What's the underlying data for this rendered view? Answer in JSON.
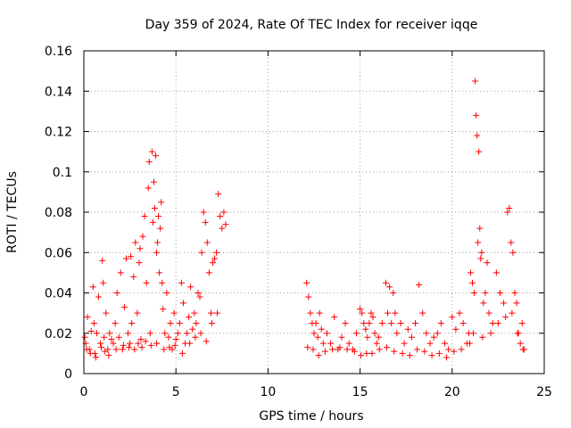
{
  "chart_data": {
    "type": "scatter",
    "title": "Day 359 of 2024, Rate Of TEC Index for receiver iqqe",
    "xlabel": "GPS time / hours",
    "ylabel": "ROTI / TECUs",
    "xlim": [
      0,
      25
    ],
    "ylim": [
      0,
      0.16
    ],
    "x_ticks": [
      0,
      5,
      10,
      15,
      20,
      25
    ],
    "y_ticks": [
      0,
      0.02,
      0.04,
      0.06,
      0.08,
      0.1,
      0.12,
      0.14,
      0.16
    ],
    "x_tick_labels": [
      "0",
      "5",
      "10",
      "15",
      "20",
      "25"
    ],
    "y_tick_labels": [
      "0",
      "0.02",
      "0.04",
      "0.06",
      "0.08",
      "0.1",
      "0.12",
      "0.14",
      "0.16"
    ],
    "grid": true,
    "marker": "+",
    "marker_color": "#ff0000",
    "series": [
      {
        "name": "ROTI",
        "x": [
          0.05,
          0.1,
          0.2,
          0.3,
          0.4,
          0.5,
          0.55,
          0.6,
          0.7,
          0.8,
          0.9,
          1.0,
          1.05,
          1.1,
          1.2,
          1.3,
          1.4,
          1.5,
          1.6,
          1.7,
          1.8,
          1.9,
          2.0,
          2.1,
          2.2,
          2.3,
          2.4,
          2.5,
          2.55,
          2.6,
          2.7,
          2.8,
          2.9,
          3.0,
          3.05,
          3.1,
          3.2,
          3.3,
          3.4,
          3.5,
          3.55,
          3.6,
          3.7,
          3.75,
          3.8,
          3.85,
          3.9,
          3.95,
          4.0,
          4.05,
          4.1,
          4.15,
          4.2,
          4.25,
          4.3,
          4.4,
          4.5,
          4.6,
          4.7,
          4.8,
          4.9,
          5.0,
          5.1,
          5.2,
          5.3,
          5.4,
          5.5,
          5.6,
          5.7,
          5.8,
          5.9,
          6.0,
          6.1,
          6.2,
          6.3,
          6.4,
          6.5,
          6.6,
          6.7,
          6.8,
          6.9,
          7.0,
          7.1,
          7.2,
          7.3,
          7.4,
          7.5,
          7.6,
          7.7,
          0.15,
          0.35,
          0.65,
          0.95,
          1.15,
          1.35,
          1.75,
          2.15,
          2.45,
          2.75,
          2.95,
          3.15,
          3.35,
          3.65,
          3.95,
          4.35,
          4.65,
          4.95,
          5.35,
          5.75,
          6.05,
          6.35,
          6.65,
          6.95,
          7.25,
          12.1,
          12.2,
          12.3,
          12.4,
          12.5,
          12.6,
          12.7,
          12.8,
          12.9,
          13.0,
          13.2,
          13.4,
          13.6,
          13.8,
          14.0,
          14.2,
          14.4,
          14.6,
          14.8,
          15.0,
          15.1,
          15.2,
          15.3,
          15.4,
          15.5,
          15.6,
          15.7,
          15.8,
          15.9,
          16.0,
          16.2,
          16.4,
          16.5,
          16.6,
          16.7,
          16.8,
          16.9,
          17.0,
          17.2,
          17.4,
          17.6,
          17.8,
          18.0,
          18.2,
          18.4,
          18.6,
          18.8,
          19.0,
          19.2,
          19.4,
          19.6,
          19.8,
          20.0,
          20.2,
          20.4,
          20.6,
          20.8,
          20.9,
          21.0,
          21.1,
          21.2,
          21.25,
          21.3,
          21.35,
          21.4,
          21.45,
          21.5,
          21.55,
          21.6,
          21.7,
          21.8,
          21.9,
          22.0,
          22.2,
          22.4,
          22.6,
          22.8,
          23.0,
          23.1,
          23.2,
          23.3,
          23.4,
          23.5,
          23.6,
          23.7,
          23.8,
          23.9,
          12.15,
          12.45,
          12.75,
          13.1,
          13.5,
          13.9,
          14.3,
          14.7,
          15.05,
          15.35,
          15.65,
          16.05,
          16.45,
          16.85,
          17.3,
          17.7,
          18.1,
          18.5,
          18.9,
          19.3,
          19.7,
          20.1,
          20.5,
          20.95,
          21.15,
          21.65,
          22.1,
          22.5,
          22.9,
          23.25,
          23.55,
          23.85
        ],
        "y": [
          0.018,
          0.015,
          0.028,
          0.012,
          0.021,
          0.043,
          0.025,
          0.01,
          0.02,
          0.038,
          0.015,
          0.056,
          0.045,
          0.018,
          0.03,
          0.012,
          0.02,
          0.017,
          0.015,
          0.025,
          0.04,
          0.018,
          0.05,
          0.012,
          0.033,
          0.057,
          0.02,
          0.015,
          0.058,
          0.025,
          0.048,
          0.065,
          0.03,
          0.055,
          0.062,
          0.017,
          0.068,
          0.078,
          0.045,
          0.092,
          0.105,
          0.02,
          0.11,
          0.075,
          0.095,
          0.082,
          0.108,
          0.06,
          0.065,
          0.078,
          0.05,
          0.072,
          0.085,
          0.045,
          0.032,
          0.02,
          0.04,
          0.018,
          0.025,
          0.012,
          0.03,
          0.017,
          0.02,
          0.025,
          0.045,
          0.035,
          0.015,
          0.02,
          0.028,
          0.043,
          0.022,
          0.03,
          0.025,
          0.04,
          0.038,
          0.06,
          0.08,
          0.075,
          0.065,
          0.05,
          0.03,
          0.055,
          0.057,
          0.06,
          0.089,
          0.078,
          0.072,
          0.08,
          0.074,
          0.012,
          0.01,
          0.008,
          0.013,
          0.011,
          0.009,
          0.012,
          0.014,
          0.013,
          0.012,
          0.015,
          0.013,
          0.016,
          0.014,
          0.015,
          0.012,
          0.013,
          0.014,
          0.01,
          0.015,
          0.018,
          0.02,
          0.016,
          0.025,
          0.03,
          0.045,
          0.038,
          0.03,
          0.025,
          0.02,
          0.025,
          0.018,
          0.03,
          0.022,
          0.015,
          0.02,
          0.015,
          0.028,
          0.012,
          0.018,
          0.025,
          0.015,
          0.012,
          0.02,
          0.032,
          0.03,
          0.025,
          0.022,
          0.018,
          0.025,
          0.03,
          0.028,
          0.02,
          0.015,
          0.018,
          0.025,
          0.045,
          0.03,
          0.043,
          0.025,
          0.04,
          0.03,
          0.02,
          0.025,
          0.015,
          0.022,
          0.018,
          0.025,
          0.044,
          0.03,
          0.02,
          0.015,
          0.018,
          0.02,
          0.025,
          0.015,
          0.012,
          0.028,
          0.022,
          0.03,
          0.025,
          0.015,
          0.02,
          0.05,
          0.045,
          0.04,
          0.145,
          0.128,
          0.118,
          0.065,
          0.11,
          0.072,
          0.057,
          0.06,
          0.035,
          0.04,
          0.055,
          0.03,
          0.025,
          0.05,
          0.04,
          0.035,
          0.08,
          0.082,
          0.065,
          0.06,
          0.04,
          0.035,
          0.02,
          0.015,
          0.025,
          0.012,
          0.013,
          0.012,
          0.009,
          0.011,
          0.012,
          0.013,
          0.012,
          0.011,
          0.009,
          0.01,
          0.01,
          0.012,
          0.013,
          0.011,
          0.01,
          0.009,
          0.012,
          0.011,
          0.009,
          0.01,
          0.008,
          0.011,
          0.012,
          0.015,
          0.02,
          0.018,
          0.02,
          0.025,
          0.028,
          0.03,
          0.02,
          0.012
        ]
      }
    ]
  }
}
